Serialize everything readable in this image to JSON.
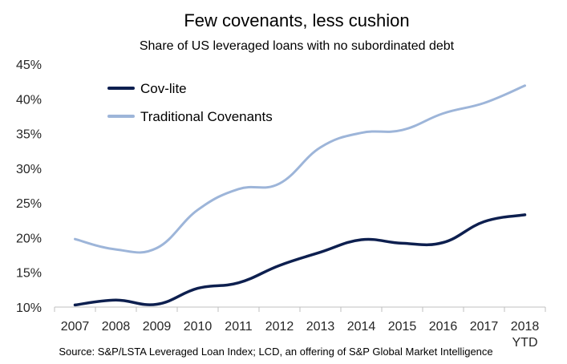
{
  "chart_data": {
    "type": "line",
    "title": "Few covenants, less cushion",
    "subtitle": "Share of US leveraged loans with no subordinated debt",
    "source": "Source: S&P/LSTA Leveraged Loan Index; LCD, an offering of S&P Global Market Intelligence",
    "categories": [
      [
        "2007"
      ],
      [
        "2008"
      ],
      [
        "2009"
      ],
      [
        "2010"
      ],
      [
        "2011"
      ],
      [
        "2012"
      ],
      [
        "2013"
      ],
      [
        "2014"
      ],
      [
        "2015"
      ],
      [
        "2016"
      ],
      [
        "2017"
      ],
      [
        "2018",
        "YTD"
      ]
    ],
    "series": [
      {
        "name": "Cov-lite",
        "color": "#0d1f4f",
        "values": [
          10.3,
          11.0,
          10.4,
          12.7,
          13.5,
          16.0,
          17.9,
          19.7,
          19.2,
          19.3,
          22.3,
          23.3
        ]
      },
      {
        "name": "Traditional Covenants",
        "color": "#9db5d9",
        "values": [
          19.8,
          18.3,
          18.5,
          24.0,
          27.0,
          27.8,
          33.0,
          35.1,
          35.5,
          37.9,
          39.4,
          41.9
        ]
      }
    ],
    "y_ticks": [
      "10%",
      "15%",
      "20%",
      "25%",
      "30%",
      "35%",
      "40%",
      "45%"
    ],
    "ylim": [
      10,
      45
    ],
    "grid": false,
    "legend_position": "top-left"
  }
}
